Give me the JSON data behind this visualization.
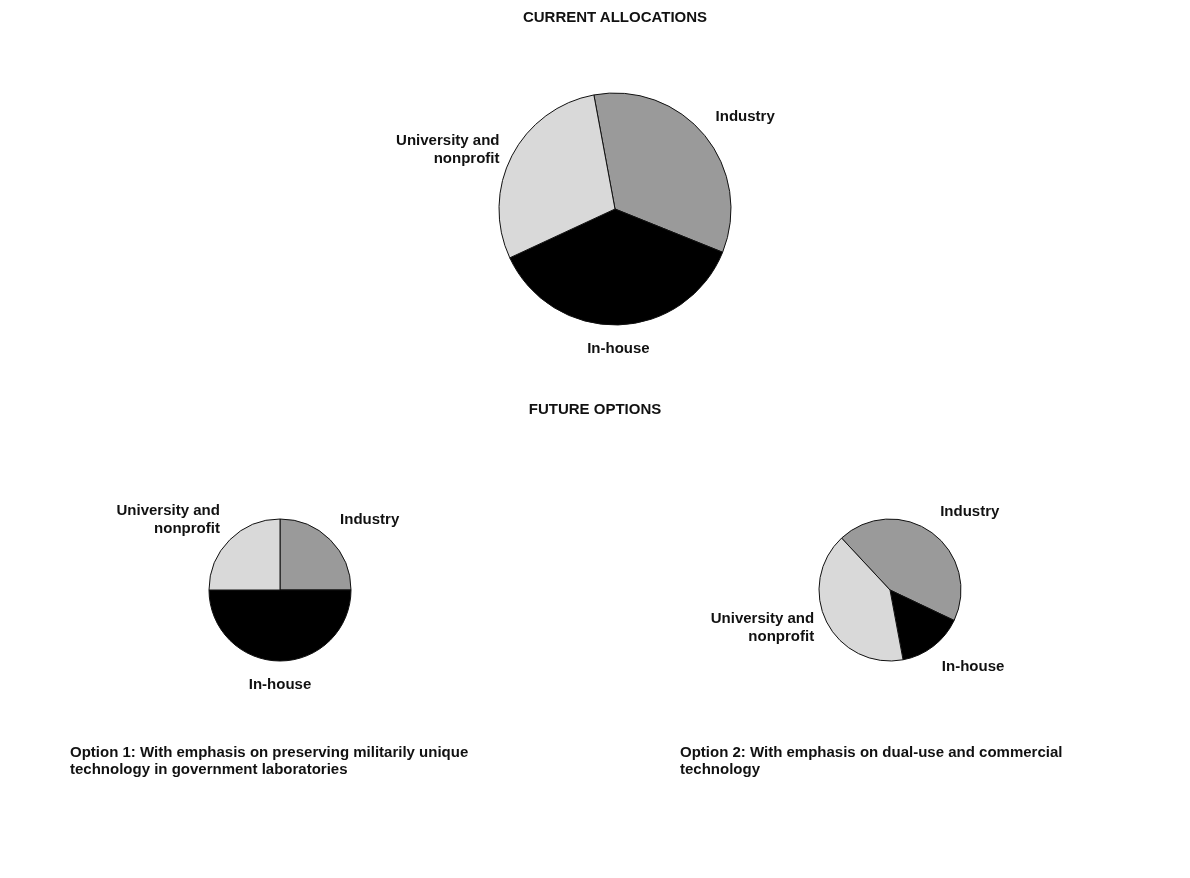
{
  "chart_data": [
    {
      "type": "pie",
      "title": "CURRENT ALLOCATIONS",
      "categories": [
        "Industry",
        "In-house",
        "University and nonprofit"
      ],
      "values": [
        34,
        37,
        29
      ],
      "colors": [
        "#9a9a9a",
        "#000000",
        "#d9d9d9"
      ],
      "legend": false
    },
    {
      "type": "pie",
      "annotations": [
        "FUTURE OPTIONS"
      ],
      "title": "Option 1: With emphasis on preserving militarily unique technology in government laboratories",
      "categories": [
        "Industry",
        "In-house",
        "University and nonprofit"
      ],
      "values": [
        25,
        50,
        25
      ],
      "colors": [
        "#9a9a9a",
        "#000000",
        "#d9d9d9"
      ],
      "legend": false
    },
    {
      "type": "pie",
      "title": "Option 2: With emphasis on dual-use and commercial technology",
      "categories": [
        "Industry",
        "In-house",
        "University and nonprofit"
      ],
      "values": [
        44,
        15,
        41
      ],
      "colors": [
        "#9a9a9a",
        "#000000",
        "#d9d9d9"
      ],
      "legend": false
    }
  ]
}
